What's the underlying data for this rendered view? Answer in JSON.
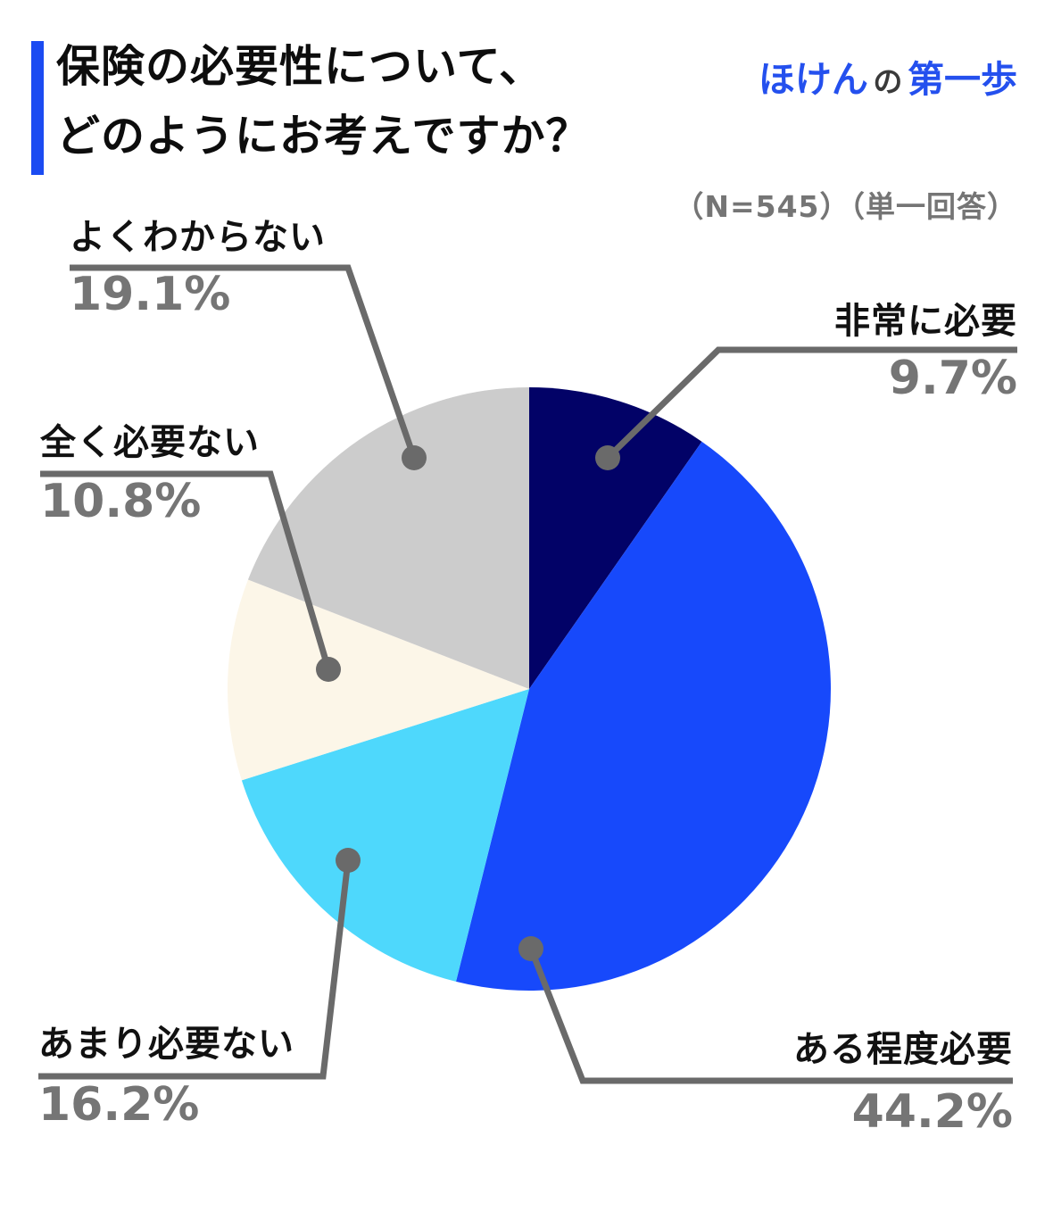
{
  "header": {
    "title_line1": "保険の必要性について、",
    "title_line2": "どのようにお考えですか？",
    "logo": {
      "part1": "ほけん",
      "part2": "の",
      "part3": "第一歩"
    },
    "note": "（N=545）（単一回答）"
  },
  "colors": {
    "title_bar_blue": "#1B4BF2",
    "logo_blue": "#2450EE",
    "logo_dark": "#3a3a3a",
    "leader_line_gray": "#6A6A6A",
    "percent_gray": "#757575",
    "note_gray": "#757575",
    "label_black": "#111111"
  },
  "chart_data": {
    "type": "pie",
    "title": "保険の必要性について、どのようにお考えですか？",
    "sample_note": "（N=545）（単一回答）",
    "n": 545,
    "start_angle_deg": 0,
    "direction": "clockwise",
    "legend_position": "callouts",
    "segments": [
      {
        "label": "非常に必要",
        "value": 9.7,
        "pct": "9.7%",
        "color": "#020267"
      },
      {
        "label": "ある程度必要",
        "value": 44.2,
        "pct": "44.2%",
        "color": "#1749FB"
      },
      {
        "label": "あまり必要ない",
        "value": 16.2,
        "pct": "16.2%",
        "color": "#4ED8FC"
      },
      {
        "label": "全く必要ない",
        "value": 10.8,
        "pct": "10.8%",
        "color": "#FCF6E8"
      },
      {
        "label": "よくわからない",
        "value": 19.1,
        "pct": "19.1%",
        "color": "#CCCCCC"
      }
    ]
  }
}
